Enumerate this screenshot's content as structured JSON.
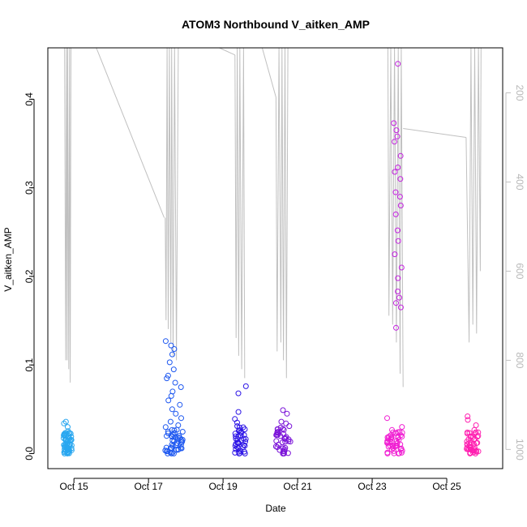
{
  "chart_data": {
    "type": "scatter",
    "title": "ATOM3 Northbound V_aitken_AMP",
    "xlabel": "Date",
    "ylabel": "V_aitken_AMP",
    "ylabel_right": "",
    "x_unit": "days in October",
    "xlim": [
      14.3,
      26.5
    ],
    "ylim": [
      -0.017,
      0.458
    ],
    "y_ticks": [
      0.0,
      0.1,
      0.2,
      0.3,
      0.4
    ],
    "x_ticks": [
      {
        "x": 15,
        "label": "Oct 15"
      },
      {
        "x": 17,
        "label": "Oct 17"
      },
      {
        "x": 19,
        "label": "Oct 19"
      },
      {
        "x": 21,
        "label": "Oct 21"
      },
      {
        "x": 23,
        "label": "Oct 23"
      },
      {
        "x": 25,
        "label": "Oct 25"
      }
    ],
    "right_axis": {
      "quantity": "altitude / pressure trace",
      "ylim": [
        1043,
        99
      ],
      "ticks": [
        200,
        400,
        600,
        800,
        1000
      ],
      "line_color": "#c0c0c0"
    },
    "grid": false,
    "legend": "none",
    "series": [
      {
        "color": "#29a7f0",
        "x_range": [
          14.72,
          14.95
        ],
        "y": [
          0.0,
          0.002,
          0.004,
          0.005,
          0.006,
          0.008,
          0.009,
          0.01,
          0.012,
          0.014,
          0.016,
          0.018,
          0.02,
          0.022,
          0.024,
          0.03,
          0.034,
          0.036
        ]
      },
      {
        "color": "#1e58f0",
        "x_range": [
          17.45,
          17.92
        ],
        "y": [
          0.0,
          0.003,
          0.005,
          0.008,
          0.01,
          0.012,
          0.015,
          0.018,
          0.02,
          0.024,
          0.028,
          0.032,
          0.036,
          0.04,
          0.045,
          0.05,
          0.055,
          0.06,
          0.065,
          0.07,
          0.075,
          0.08,
          0.085,
          0.088,
          0.095,
          0.103,
          0.112,
          0.118,
          0.122,
          0.127
        ]
      },
      {
        "color": "#2c14e6",
        "x_range": [
          19.3,
          19.62
        ],
        "y": [
          0.0,
          0.004,
          0.007,
          0.01,
          0.013,
          0.016,
          0.02,
          0.024,
          0.028,
          0.031,
          0.035,
          0.039,
          0.047,
          0.068,
          0.076
        ]
      },
      {
        "color": "#7a12d8",
        "x_range": [
          20.42,
          20.82
        ],
        "y": [
          0.0,
          0.004,
          0.008,
          0.012,
          0.015,
          0.018,
          0.022,
          0.025,
          0.028,
          0.031,
          0.034,
          0.036,
          0.045,
          0.049
        ]
      },
      {
        "color": "#c420e0",
        "x_range": [
          23.58,
          23.82
        ],
        "y": [
          0.142,
          0.165,
          0.17,
          0.176,
          0.183,
          0.198,
          0.21,
          0.225,
          0.24,
          0.252,
          0.27,
          0.28,
          0.29,
          0.295,
          0.31,
          0.318,
          0.323,
          0.336,
          0.352,
          0.358,
          0.365,
          0.373,
          0.44
        ]
      },
      {
        "color": "#f01ed2",
        "x_range": [
          23.4,
          23.82
        ],
        "y": [
          0.0,
          0.002,
          0.005,
          0.008,
          0.01,
          0.012,
          0.014,
          0.016,
          0.018,
          0.02,
          0.022,
          0.025,
          0.03,
          0.04
        ]
      },
      {
        "color": "#ff1fb0",
        "x_range": [
          25.52,
          25.85
        ],
        "y": [
          0.0,
          0.002,
          0.004,
          0.006,
          0.008,
          0.01,
          0.012,
          0.015,
          0.018,
          0.022,
          0.025,
          0.032,
          0.038,
          0.042
        ]
      }
    ],
    "altitude_trace": {
      "segments": [
        [
          [
            14.75,
            99
          ],
          [
            14.77,
            590
          ],
          [
            14.78,
            800
          ],
          [
            14.8,
            99
          ],
          [
            14.82,
            800
          ],
          [
            14.83,
            99
          ],
          [
            14.86,
            820
          ],
          [
            14.88,
            99
          ],
          [
            14.9,
            850
          ],
          [
            14.92,
            99
          ]
        ],
        [
          [
            15.6,
            99
          ],
          [
            17.42,
            480
          ]
        ],
        [
          [
            17.45,
            480
          ],
          [
            17.47,
            710
          ],
          [
            17.5,
            99
          ],
          [
            17.53,
            730
          ],
          [
            17.56,
            99
          ],
          [
            17.6,
            760
          ],
          [
            17.62,
            99
          ],
          [
            17.66,
            790
          ],
          [
            17.7,
            99
          ],
          [
            17.75,
            800
          ],
          [
            17.8,
            99
          ]
        ],
        [
          [
            18.9,
            99
          ],
          [
            19.32,
            115
          ]
        ],
        [
          [
            19.32,
            115
          ],
          [
            19.35,
            750
          ],
          [
            19.38,
            99
          ],
          [
            19.42,
            790
          ],
          [
            19.45,
            99
          ],
          [
            19.5,
            820
          ],
          [
            19.55,
            99
          ],
          [
            19.58,
            840
          ]
        ],
        [
          [
            20.05,
            99
          ],
          [
            20.42,
            210
          ]
        ],
        [
          [
            20.42,
            210
          ],
          [
            20.45,
            780
          ],
          [
            20.5,
            99
          ],
          [
            20.55,
            760
          ],
          [
            20.58,
            99
          ],
          [
            20.62,
            800
          ],
          [
            20.66,
            99
          ],
          [
            20.7,
            840
          ],
          [
            20.74,
            99
          ]
        ],
        [
          [
            23.42,
            99
          ],
          [
            23.45,
            700
          ],
          [
            23.5,
            99
          ],
          [
            23.55,
            720
          ],
          [
            23.6,
            99
          ],
          [
            23.65,
            760
          ],
          [
            23.7,
            99
          ],
          [
            23.75,
            830
          ],
          [
            23.78,
            99
          ],
          [
            23.83,
            860
          ]
        ],
        [
          [
            23.83,
            280
          ],
          [
            25.52,
            300
          ]
        ],
        [
          [
            25.52,
            300
          ],
          [
            25.6,
            760
          ],
          [
            25.65,
            99
          ],
          [
            25.7,
            720
          ],
          [
            25.75,
            99
          ],
          [
            25.8,
            740
          ],
          [
            25.85,
            99
          ],
          [
            25.9,
            600
          ],
          [
            25.92,
            99
          ]
        ]
      ]
    }
  }
}
